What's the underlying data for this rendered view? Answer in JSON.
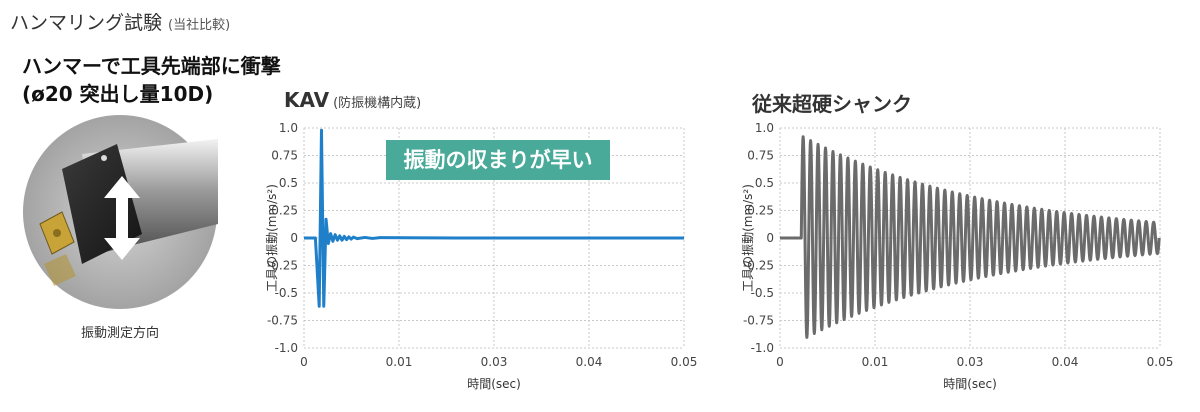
{
  "page": {
    "title": "ハンマリング試験",
    "title_note": "(当社比較)",
    "heading_line1": "ハンマーで工具先端部に衝撃",
    "heading_line2": "(ø20 突出し量10D)",
    "photo_caption": "振動測定方向"
  },
  "colors": {
    "kav_line": "#1f7fc8",
    "conventional_line": "#6b6b6b",
    "callout_bg": "#4aaa99",
    "grid": "#c8c8c8"
  },
  "chart_data": [
    {
      "type": "line",
      "title": "KAV",
      "subtitle": "(防振機構内蔵)",
      "callout": "振動の収まりが早い",
      "xlabel": "時間(sec)",
      "ylabel": "工具の振動(mm/s²)",
      "xlim": [
        0,
        0.05
      ],
      "ylim": [
        -1.0,
        1.0
      ],
      "xticks": [
        "0",
        "0.01",
        "0.03",
        "0.04",
        "0.05"
      ],
      "yticks": [
        "1.0",
        "0.75",
        "0.5",
        "0.25",
        "0",
        "-0.25",
        "-0.5",
        "-0.75",
        "-1.0"
      ],
      "grid": true,
      "series": [
        {
          "x": [
            0,
            0.0015,
            0.002,
            0.0023,
            0.0026,
            0.0029,
            0.0032,
            0.0035,
            0.0038,
            0.0041,
            0.0044,
            0.0047,
            0.005,
            0.0053,
            0.0056,
            0.0059,
            0.0062,
            0.0065,
            0.007,
            0.008,
            0.009,
            0.01,
            0.02,
            0.03,
            0.04,
            0.05
          ],
          "y": [
            0,
            0,
            -0.62,
            0.98,
            -0.62,
            0.17,
            -0.05,
            0.04,
            -0.03,
            0.03,
            -0.02,
            0.02,
            -0.02,
            0.015,
            -0.015,
            0.01,
            -0.01,
            0.008,
            -0.006,
            0.005,
            -0.004,
            0.003,
            0,
            0,
            0,
            0
          ]
        }
      ]
    },
    {
      "type": "line",
      "title": "従来超硬シャンク",
      "xlabel": "時間(sec)",
      "ylabel": "工具の振動(mm/s²)",
      "xlim": [
        0,
        0.05
      ],
      "ylim": [
        -1.0,
        1.0
      ],
      "xticks": [
        "0",
        "0.01",
        "0.03",
        "0.04",
        "0.05"
      ],
      "yticks": [
        "1.0",
        "0.75",
        "0.5",
        "0.25",
        "0",
        "-0.25",
        "-0.5",
        "-0.75",
        "-1.0"
      ],
      "grid": true,
      "series": [
        {
          "signal": "damped oscillation",
          "onset_x": 0.0028,
          "first_peak_y": 0.93,
          "first_trough_y": -0.96,
          "end_amplitude_y": 0.14,
          "cycles": 48,
          "x_end": 0.0499
        }
      ]
    }
  ]
}
